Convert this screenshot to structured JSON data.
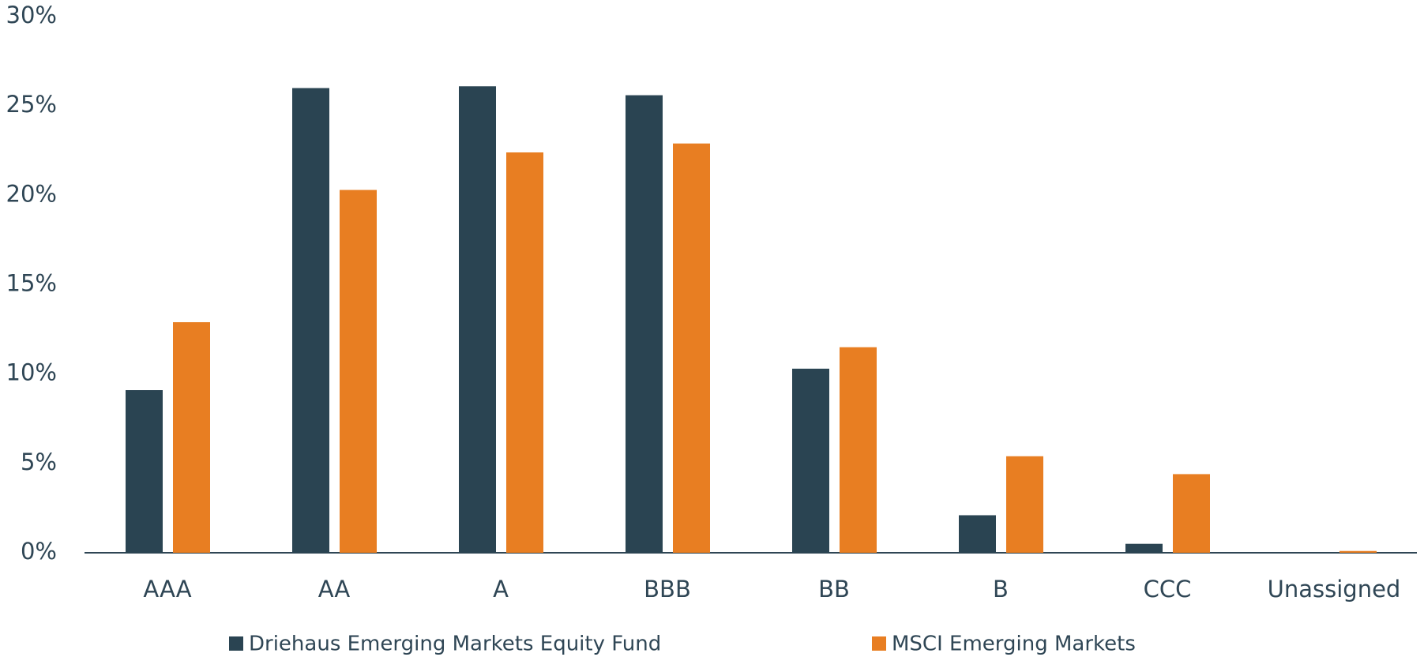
{
  "chart_data": {
    "type": "bar",
    "categories": [
      "AAA",
      "AA",
      "A",
      "BBB",
      "BB",
      "B",
      "CCC",
      "Unassigned"
    ],
    "series": [
      {
        "name": "Driehaus Emerging Markets Equity Fund",
        "color": "#2a4452",
        "values": [
          9.1,
          26.0,
          26.1,
          25.6,
          10.3,
          2.1,
          0.5,
          0
        ]
      },
      {
        "name": "MSCI Emerging Markets",
        "color": "#e87e22",
        "values": [
          12.9,
          20.3,
          22.4,
          22.9,
          11.5,
          5.4,
          4.4,
          0.1
        ]
      }
    ],
    "ylim": [
      0,
      30
    ],
    "yticks": [
      {
        "value": 0,
        "label": "0%"
      },
      {
        "value": 5,
        "label": "5%"
      },
      {
        "value": 10,
        "label": "10%"
      },
      {
        "value": 15,
        "label": "15%"
      },
      {
        "value": 20,
        "label": "20%"
      },
      {
        "value": 25,
        "label": "25%"
      },
      {
        "value": 30,
        "label": "30%"
      }
    ],
    "legend": "bottom"
  }
}
